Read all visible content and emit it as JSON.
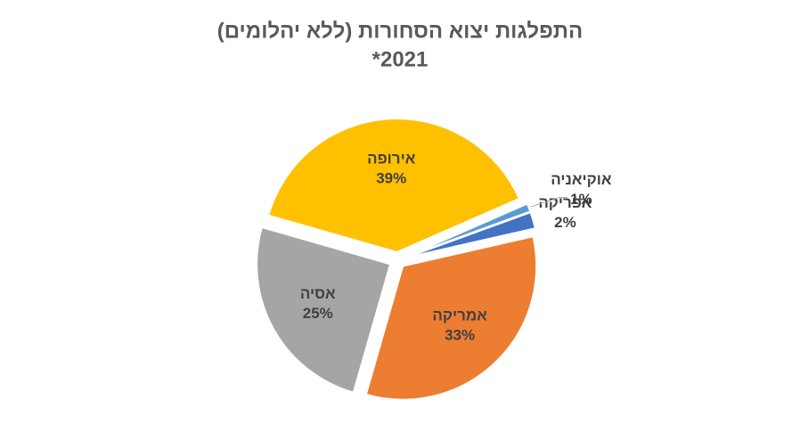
{
  "chart_data": {
    "type": "pie",
    "title": "התפלגות יצוא הסחורות (ללא יהלומים)",
    "subtitle": "2021*",
    "categories": [
      "אפריקה",
      "אמריקה",
      "אסיה",
      "אירופה",
      "אוקיאניה"
    ],
    "values": [
      2,
      33,
      25,
      39,
      1
    ],
    "value_labels": [
      "2%",
      "33%",
      "25%",
      "39%",
      "1%"
    ],
    "colors": [
      "#4472c4",
      "#ed7d31",
      "#a5a5a5",
      "#ffc000",
      "#5b9bd5"
    ]
  }
}
